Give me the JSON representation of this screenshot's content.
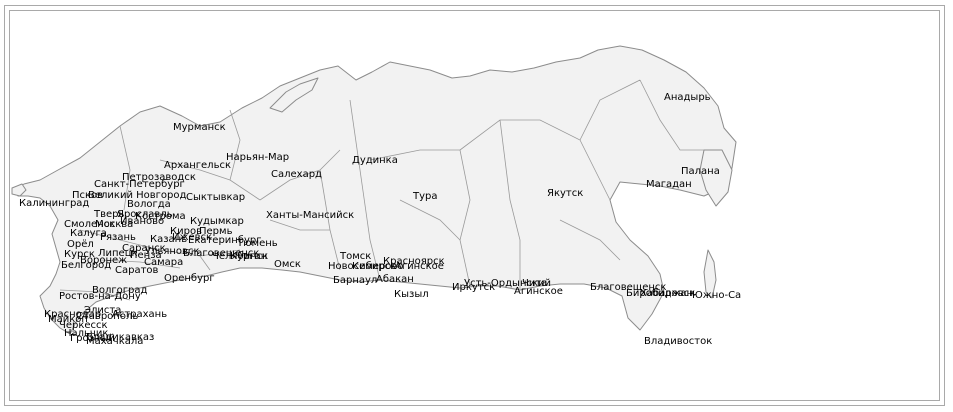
{
  "cities": [
    {
      "id": "anadyr",
      "label": "Анадырь"
    },
    {
      "id": "murmansk",
      "label": "Мурманск"
    },
    {
      "id": "naryan-mar",
      "label": "Нарьян-Мар"
    },
    {
      "id": "arkhangelsk",
      "label": "Архангельск"
    },
    {
      "id": "dudinka",
      "label": "Дудинка"
    },
    {
      "id": "salekhard",
      "label": "Салехард"
    },
    {
      "id": "palana",
      "label": "Палана"
    },
    {
      "id": "petrozavodsk",
      "label": "Петрозаводск"
    },
    {
      "id": "saint-petersburg",
      "label": "Санкт-Петербург"
    },
    {
      "id": "magadan",
      "label": "Магадан"
    },
    {
      "id": "pskov",
      "label": "Псков"
    },
    {
      "id": "velikiy-novgorod",
      "label": "Великий Новгород"
    },
    {
      "id": "syktyvkar",
      "label": "Сыктывкар"
    },
    {
      "id": "tura",
      "label": "Тура"
    },
    {
      "id": "yakutsk",
      "label": "Якутск"
    },
    {
      "id": "kaliningrad",
      "label": "Калининград"
    },
    {
      "id": "vologda",
      "label": "Вологда"
    },
    {
      "id": "tver",
      "label": "Тверь"
    },
    {
      "id": "yaroslavl",
      "label": "Ярославль"
    },
    {
      "id": "khanty-mansiysk",
      "label": "Ханты-Мансийск"
    },
    {
      "id": "kudymkar",
      "label": "Кудымкар"
    },
    {
      "id": "smolensk",
      "label": "Смоленск"
    },
    {
      "id": "moscow",
      "label": "Москва"
    },
    {
      "id": "ivanovo",
      "label": "Иваново"
    },
    {
      "id": "kostroma",
      "label": "Кострома"
    },
    {
      "id": "kirov",
      "label": "Киров"
    },
    {
      "id": "perm",
      "label": "Пермь"
    },
    {
      "id": "kaluga",
      "label": "Калуга"
    },
    {
      "id": "ryazan",
      "label": "Рязань"
    },
    {
      "id": "kazan",
      "label": "Казань"
    },
    {
      "id": "izhevsk",
      "label": "Ижевск"
    },
    {
      "id": "yekaterinburg",
      "label": "Екатеринбург"
    },
    {
      "id": "tyumen",
      "label": "Тюмень"
    },
    {
      "id": "oryol",
      "label": "Орёл"
    },
    {
      "id": "saransk",
      "label": "Саранск"
    },
    {
      "id": "ulyanovsk",
      "label": "Ульяновск"
    },
    {
      "id": "blagoveshchensk-ural",
      "label": "Благовещенск"
    },
    {
      "id": "kurgan",
      "label": "Курган"
    },
    {
      "id": "chelyabinsk",
      "label": "Челябинск"
    },
    {
      "id": "tomsk",
      "label": "Томск"
    },
    {
      "id": "krasnoyarsk",
      "label": "Красноярск"
    },
    {
      "id": "kursk",
      "label": "Курск"
    },
    {
      "id": "lipetsk",
      "label": "Липецк"
    },
    {
      "id": "penza",
      "label": "Пенза"
    },
    {
      "id": "omsk",
      "label": "Омск"
    },
    {
      "id": "novosibirsk",
      "label": "Новосибирск"
    },
    {
      "id": "kemerovo",
      "label": "Кемерово"
    },
    {
      "id": "aginskoe-north",
      "label": "Агинское"
    },
    {
      "id": "voronezh",
      "label": "Воронеж"
    },
    {
      "id": "samara",
      "label": "Самара"
    },
    {
      "id": "belgorod",
      "label": "Белгород"
    },
    {
      "id": "saratov",
      "label": "Саратов"
    },
    {
      "id": "barnaul",
      "label": "Барнаул"
    },
    {
      "id": "abakan",
      "label": "Абакан"
    },
    {
      "id": "ust-ordynsky",
      "label": "Усть-Ордынский"
    },
    {
      "id": "irkutsk",
      "label": "Иркутск"
    },
    {
      "id": "orenburg",
      "label": "Оренбург"
    },
    {
      "id": "chita",
      "label": "Чита"
    },
    {
      "id": "aginskoe",
      "label": "Агинское"
    },
    {
      "id": "blagoveshchensk",
      "label": "Благовещенск"
    },
    {
      "id": "birobidzhan",
      "label": "Биробиджан"
    },
    {
      "id": "khabarovsk",
      "label": "Хабаровск"
    },
    {
      "id": "yuzhno-sakhalinsk",
      "label": "Южно-Са"
    },
    {
      "id": "kyzyl",
      "label": "Кызыл"
    },
    {
      "id": "volgograd",
      "label": "Волгоград"
    },
    {
      "id": "rostov",
      "label": "Ростов-на-Дону"
    },
    {
      "id": "elista",
      "label": "Элиста"
    },
    {
      "id": "krasnodar",
      "label": "Краснодар"
    },
    {
      "id": "stavropol",
      "label": "Ставрополь"
    },
    {
      "id": "astrakhan",
      "label": "Астрахань"
    },
    {
      "id": "maykop",
      "label": "Майкоп"
    },
    {
      "id": "cherkessk",
      "label": "Черкесск"
    },
    {
      "id": "nalchik",
      "label": "Нальчик"
    },
    {
      "id": "vladikavkaz",
      "label": "Владикавказ"
    },
    {
      "id": "grozny",
      "label": "Грозный"
    },
    {
      "id": "makhachkala",
      "label": "Махачкала"
    },
    {
      "id": "vladivostok",
      "label": "Владивосток"
    }
  ]
}
